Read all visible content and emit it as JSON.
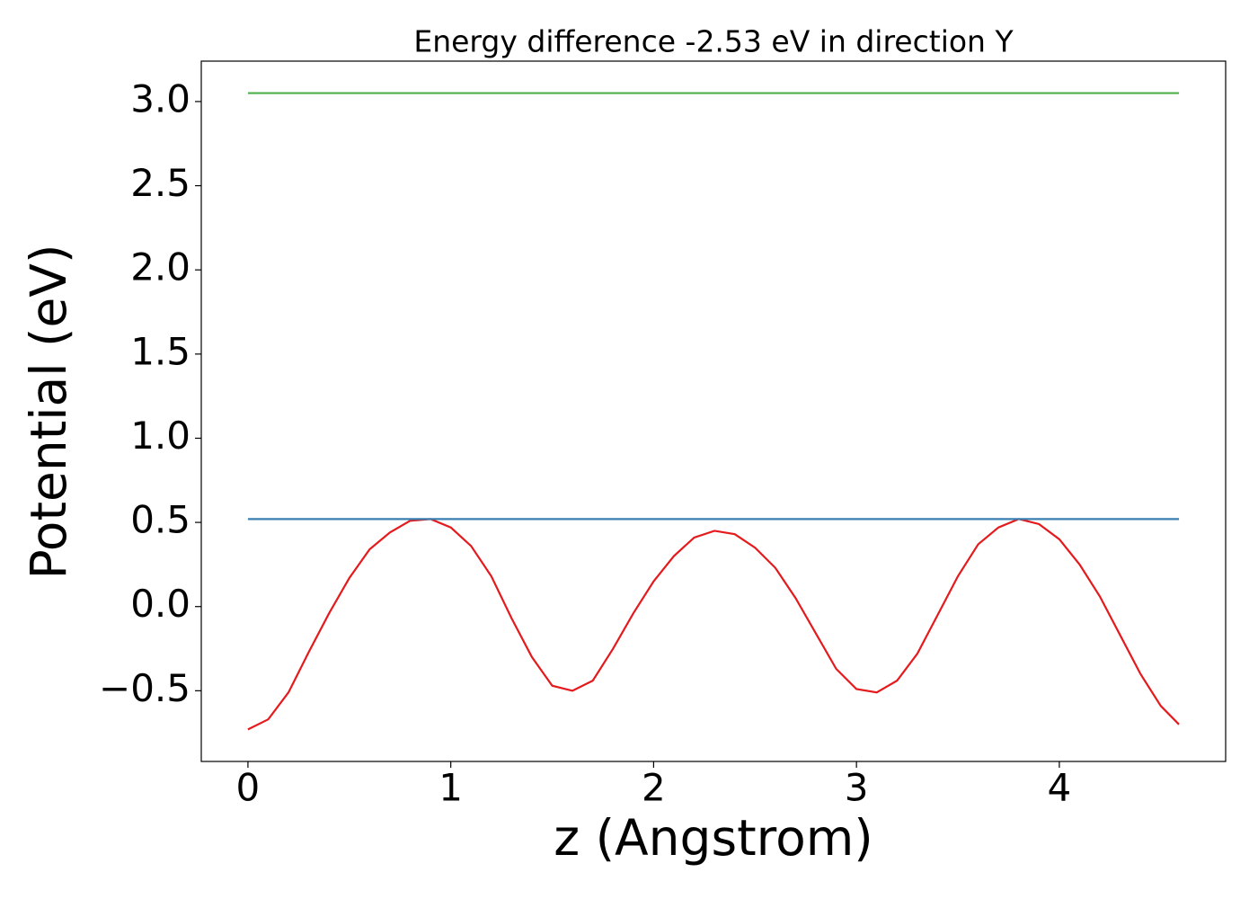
{
  "chart_data": {
    "type": "line",
    "title": "Energy difference -2.53 eV in direction Y",
    "xlabel": "z (Angstrom)",
    "ylabel": "Potential (eV)",
    "xlim": [
      -0.23,
      4.82
    ],
    "ylim": [
      -0.92,
      3.24
    ],
    "xticks": [
      0,
      1,
      2,
      3,
      4
    ],
    "yticks": [
      {
        "value": -0.5,
        "label": "−0.5"
      },
      {
        "value": 0,
        "label": "0.0"
      },
      0.5,
      {
        "value": 1,
        "label": "1.0"
      },
      1.5,
      {
        "value": 2,
        "label": "2.0"
      },
      2.5,
      {
        "value": 3,
        "label": "3.0"
      }
    ],
    "grid": false,
    "series": [
      {
        "color": "#e41a1c",
        "x": [
          0,
          0.1,
          0.2,
          0.3,
          0.4,
          0.5,
          0.6,
          0.7,
          0.8,
          0.9,
          1.0,
          1.1,
          1.2,
          1.3,
          1.4,
          1.5,
          1.6,
          1.7,
          1.8,
          1.9,
          2.0,
          2.1,
          2.2,
          2.3,
          2.4,
          2.5,
          2.6,
          2.7,
          2.8,
          2.9,
          3.0,
          3.1,
          3.2,
          3.3,
          3.4,
          3.5,
          3.6,
          3.7,
          3.8,
          3.9,
          4.0,
          4.1,
          4.2,
          4.3,
          4.4,
          4.5,
          4.59
        ],
        "values": [
          -0.73,
          -0.67,
          -0.51,
          -0.27,
          -0.04,
          0.17,
          0.34,
          0.44,
          0.51,
          0.52,
          0.47,
          0.36,
          0.18,
          -0.07,
          -0.3,
          -0.47,
          -0.5,
          -0.44,
          -0.25,
          -0.04,
          0.15,
          0.3,
          0.41,
          0.45,
          0.43,
          0.35,
          0.23,
          0.05,
          -0.16,
          -0.37,
          -0.49,
          -0.51,
          -0.44,
          -0.28,
          -0.05,
          0.18,
          0.37,
          0.47,
          0.52,
          0.49,
          0.4,
          0.25,
          0.06,
          -0.17,
          -0.4,
          -0.59,
          -0.7
        ]
      },
      {
        "color": "#3a7fb0",
        "x": [
          0,
          4.59
        ],
        "values": [
          0.52,
          0.52
        ]
      },
      {
        "color": "#4daf4a",
        "x": [
          0,
          4.59
        ],
        "values": [
          3.05,
          3.05
        ]
      }
    ]
  }
}
